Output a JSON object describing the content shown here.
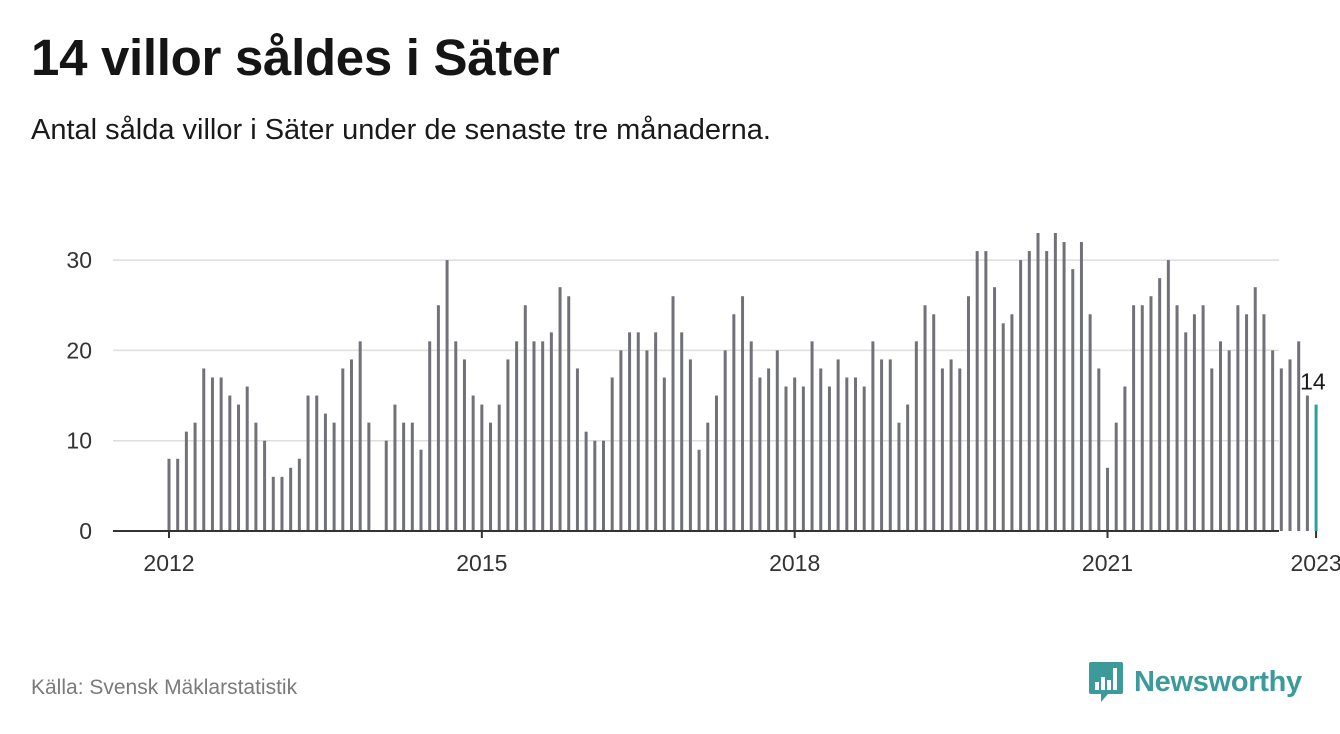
{
  "header": {
    "title": "14 villor såldes i Säter",
    "subtitle": "Antal sålda villor i Säter under de senaste tre månaderna."
  },
  "footer": {
    "source": "Källa: Svensk Mäklarstatistik",
    "brand": "Newsworthy",
    "brand_icon": "bar-chart-speech-bubble-icon"
  },
  "colors": {
    "bar": "#717179",
    "highlight": "#2aa198",
    "grid": "#dddddd",
    "axis": "#333333",
    "brand": "#3d9a9a"
  },
  "chart_data": {
    "type": "bar",
    "x_unit": "month",
    "start": "2012-01",
    "end": "2023-01",
    "values": [
      8,
      8,
      11,
      12,
      18,
      17,
      17,
      15,
      14,
      16,
      12,
      10,
      6,
      6,
      7,
      8,
      15,
      15,
      13,
      12,
      18,
      19,
      21,
      12,
      null,
      10,
      14,
      12,
      12,
      9,
      21,
      25,
      30,
      21,
      19,
      15,
      14,
      12,
      14,
      19,
      21,
      25,
      21,
      21,
      22,
      27,
      26,
      18,
      11,
      10,
      10,
      17,
      20,
      22,
      22,
      20,
      22,
      17,
      26,
      22,
      19,
      9,
      12,
      15,
      20,
      24,
      26,
      21,
      17,
      18,
      20,
      16,
      17,
      16,
      21,
      18,
      16,
      19,
      17,
      17,
      16,
      21,
      19,
      19,
      12,
      14,
      21,
      25,
      24,
      18,
      19,
      18,
      26,
      31,
      31,
      27,
      23,
      24,
      30,
      31,
      33,
      31,
      33,
      32,
      29,
      32,
      24,
      18,
      7,
      12,
      16,
      25,
      25,
      26,
      28,
      30,
      25,
      22,
      24,
      25,
      18,
      21,
      20,
      25,
      24,
      27,
      24,
      20,
      18,
      19,
      21,
      15,
      14
    ],
    "highlight_last": true,
    "highlight_label": "14",
    "x_ticks": [
      "2012",
      "2015",
      "2018",
      "2021",
      "2023"
    ],
    "x_tick_dates": [
      "2012-01",
      "2015-01",
      "2018-01",
      "2021-01",
      "2023-01"
    ],
    "y_ticks": [
      0,
      10,
      20,
      30
    ],
    "ylim": [
      0,
      35
    ],
    "grid": true
  }
}
